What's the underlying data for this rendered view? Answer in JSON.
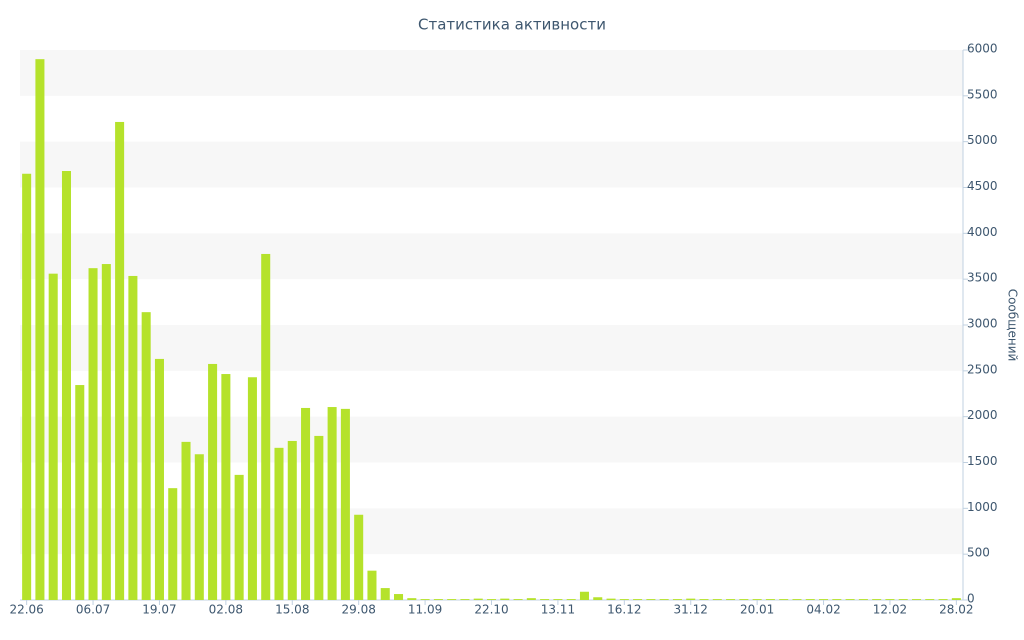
{
  "chart_data": {
    "type": "bar",
    "title": "Статистика активности",
    "y_axis_label": "Сообщений",
    "categories": [
      "22.06",
      null,
      null,
      null,
      null,
      "06.07",
      null,
      null,
      null,
      null,
      "19.07",
      null,
      null,
      null,
      null,
      "02.08",
      null,
      null,
      null,
      null,
      "15.08",
      null,
      null,
      null,
      null,
      "29.08",
      null,
      null,
      null,
      null,
      "11.09",
      null,
      null,
      null,
      null,
      "22.10",
      null,
      null,
      null,
      null,
      "13.11",
      null,
      null,
      null,
      null,
      "16.12",
      null,
      null,
      null,
      null,
      "31.12",
      null,
      null,
      null,
      null,
      "20.01",
      null,
      null,
      null,
      null,
      "04.02",
      null,
      null,
      null,
      null,
      "12.02",
      null,
      null,
      null,
      null,
      "28.02"
    ],
    "values": [
      4650,
      5900,
      3560,
      4680,
      2345,
      3620,
      3665,
      5215,
      3535,
      3140,
      2630,
      1220,
      1725,
      1590,
      2575,
      2465,
      1365,
      2430,
      3775,
      1660,
      1735,
      2095,
      1790,
      2105,
      2085,
      930,
      320,
      130,
      65,
      20,
      10,
      10,
      10,
      10,
      15,
      10,
      15,
      10,
      20,
      10,
      10,
      10,
      90,
      30,
      15,
      10,
      10,
      10,
      10,
      10,
      15,
      10,
      10,
      10,
      10,
      10,
      10,
      10,
      10,
      10,
      10,
      10,
      10,
      10,
      10,
      10,
      10,
      10,
      10,
      10,
      20
    ],
    "color": "#b5e22b",
    "ylim": [
      0,
      6000
    ],
    "yticks": [
      0,
      500,
      1000,
      1500,
      2000,
      2500,
      3000,
      3500,
      4000,
      4500,
      5000,
      5500,
      6000
    ],
    "grid_bands": true,
    "y_axis_side": "right"
  }
}
